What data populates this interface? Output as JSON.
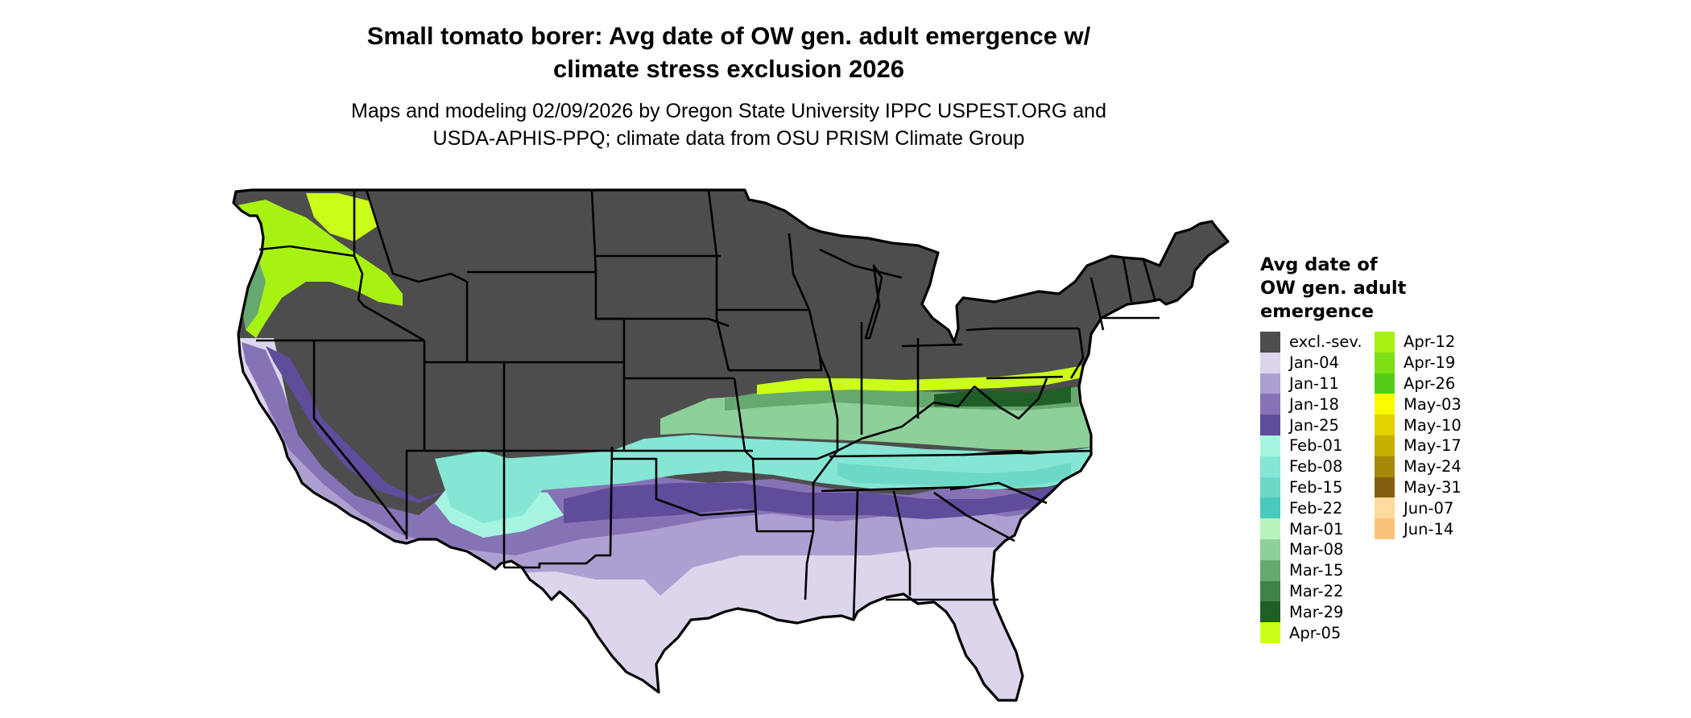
{
  "title": {
    "line1": "Small tomato borer: Avg date of OW gen. adult emergence w/",
    "line2": "climate stress exclusion 2026"
  },
  "subtitle": {
    "line1": "Maps and modeling 02/09/2026 by Oregon State University IPPC USPEST.ORG and",
    "line2": "USDA-APHIS-PPQ; climate data from OSU PRISM Climate Group"
  },
  "legend": {
    "title_lines": [
      "Avg date of",
      "OW gen. adult",
      "emergence"
    ],
    "columns": [
      [
        {
          "label": "excl.-sev.",
          "color": "#4d4d4d"
        },
        {
          "label": "Jan-04",
          "color": "#dcd5ec"
        },
        {
          "label": "Jan-11",
          "color": "#ad9fcf"
        },
        {
          "label": "Jan-18",
          "color": "#8673b6"
        },
        {
          "label": "Jan-25",
          "color": "#5f4c9a"
        },
        {
          "label": "Feb-01",
          "color": "#a6f5e1"
        },
        {
          "label": "Feb-08",
          "color": "#85e6d3"
        },
        {
          "label": "Feb-15",
          "color": "#6dd8c8"
        },
        {
          "label": "Feb-22",
          "color": "#4cc9bd"
        },
        {
          "label": "Mar-01",
          "color": "#b9f4be"
        },
        {
          "label": "Mar-08",
          "color": "#8ed09a"
        },
        {
          "label": "Mar-15",
          "color": "#66a96f"
        },
        {
          "label": "Mar-22",
          "color": "#3f8349"
        },
        {
          "label": "Mar-29",
          "color": "#1f5f27"
        },
        {
          "label": "Apr-05",
          "color": "#cbff1a"
        }
      ],
      [
        {
          "label": "Apr-12",
          "color": "#a8f213"
        },
        {
          "label": "Apr-19",
          "color": "#7edf14"
        },
        {
          "label": "Apr-26",
          "color": "#55cc17"
        },
        {
          "label": "May-03",
          "color": "#fafa00"
        },
        {
          "label": "May-10",
          "color": "#e1d200"
        },
        {
          "label": "May-17",
          "color": "#c7b100"
        },
        {
          "label": "May-24",
          "color": "#a58a0a"
        },
        {
          "label": "May-31",
          "color": "#845f12"
        },
        {
          "label": "Jun-07",
          "color": "#fddb9c"
        },
        {
          "label": "Jun-14",
          "color": "#fbc27a"
        }
      ]
    ]
  },
  "map_colors": {
    "excluded": "#4d4d4d",
    "state_borders": "#000000",
    "jan_04": "#dcd5ec",
    "jan_11": "#ad9fcf",
    "jan_18": "#8673b6",
    "jan_25": "#5f4c9a",
    "feb_01": "#a6f5e1",
    "feb_08": "#85e6d3",
    "feb_15": "#6dd8c8",
    "mar_08": "#8ed09a",
    "mar_15": "#66a96f",
    "mar_29": "#1f5f27",
    "apr_05": "#cbff1a",
    "apr_12": "#a8f213"
  }
}
